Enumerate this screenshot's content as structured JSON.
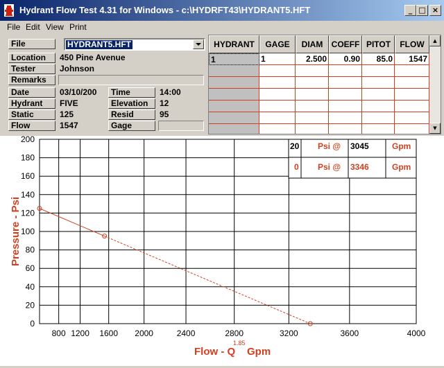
{
  "window": {
    "title": "Hydrant Flow Test 4.31 for Windows - c:\\HYDRFT43\\HYDRANT5.HFT",
    "minimize": "_",
    "maximize": "□",
    "close": "×"
  },
  "menu": {
    "file": "File",
    "edit": "Edit",
    "view": "View",
    "print": "Print"
  },
  "form": {
    "file_label": "File",
    "file_value": "HYDRANT5.HFT",
    "location_label": "Location",
    "location_value": "450 Pine Avenue",
    "tester_label": "Tester",
    "tester_value": "Johnson",
    "remarks_label": "Remarks",
    "remarks_value": "",
    "date_label": "Date",
    "date_value": "03/10/200",
    "time_label": "Time",
    "time_value": "14:00",
    "hydrant_label": "Hydrant",
    "hydrant_value": "FIVE",
    "elevation_label": "Elevation",
    "elevation_value": "12",
    "static_label": "Static",
    "static_value": "125",
    "resid_label": "Resid",
    "resid_value": "95",
    "flow_label": "Flow",
    "flow_value": "1547",
    "gage_label": "Gage",
    "gage_value": ""
  },
  "grid": {
    "headers": [
      "HYDRANT",
      "GAGE",
      "DIAM",
      "COEFF",
      "PITOT",
      "FLOW"
    ],
    "rows": [
      [
        "1",
        "1",
        "2.500",
        "0.90",
        "85.0",
        "1547"
      ]
    ]
  },
  "colors": {
    "accent": "#d04020",
    "title_start": "#0a246a",
    "title_end": "#a6caf0"
  },
  "chart_data": {
    "type": "line",
    "xlabel": "Flow - Q",
    "xlabel_exponent": "1.85",
    "xlabel_unit": "Gpm",
    "ylabel": "Pressure - Psi",
    "x_ticks": [
      "800",
      "1200",
      "1600",
      "2000",
      "2400",
      "2800",
      "3200",
      "3600",
      "4000"
    ],
    "y_ticks": [
      "0",
      "20",
      "40",
      "60",
      "80",
      "100",
      "120",
      "140",
      "160",
      "180",
      "200"
    ],
    "xlim": [
      0,
      4000
    ],
    "ylim": [
      0,
      200
    ],
    "x_scale": "Q^1.85",
    "grid": true,
    "series": [
      {
        "points": [
          [
            0,
            125
          ],
          [
            1547,
            95
          ],
          [
            3346,
            0
          ]
        ]
      }
    ],
    "results": [
      {
        "psi": "20",
        "psi_label": "Psi @",
        "flow": "3045",
        "flow_unit": "Gpm"
      },
      {
        "psi": "0",
        "psi_label": "Psi @",
        "flow": "3346",
        "flow_unit": "Gpm"
      }
    ]
  }
}
